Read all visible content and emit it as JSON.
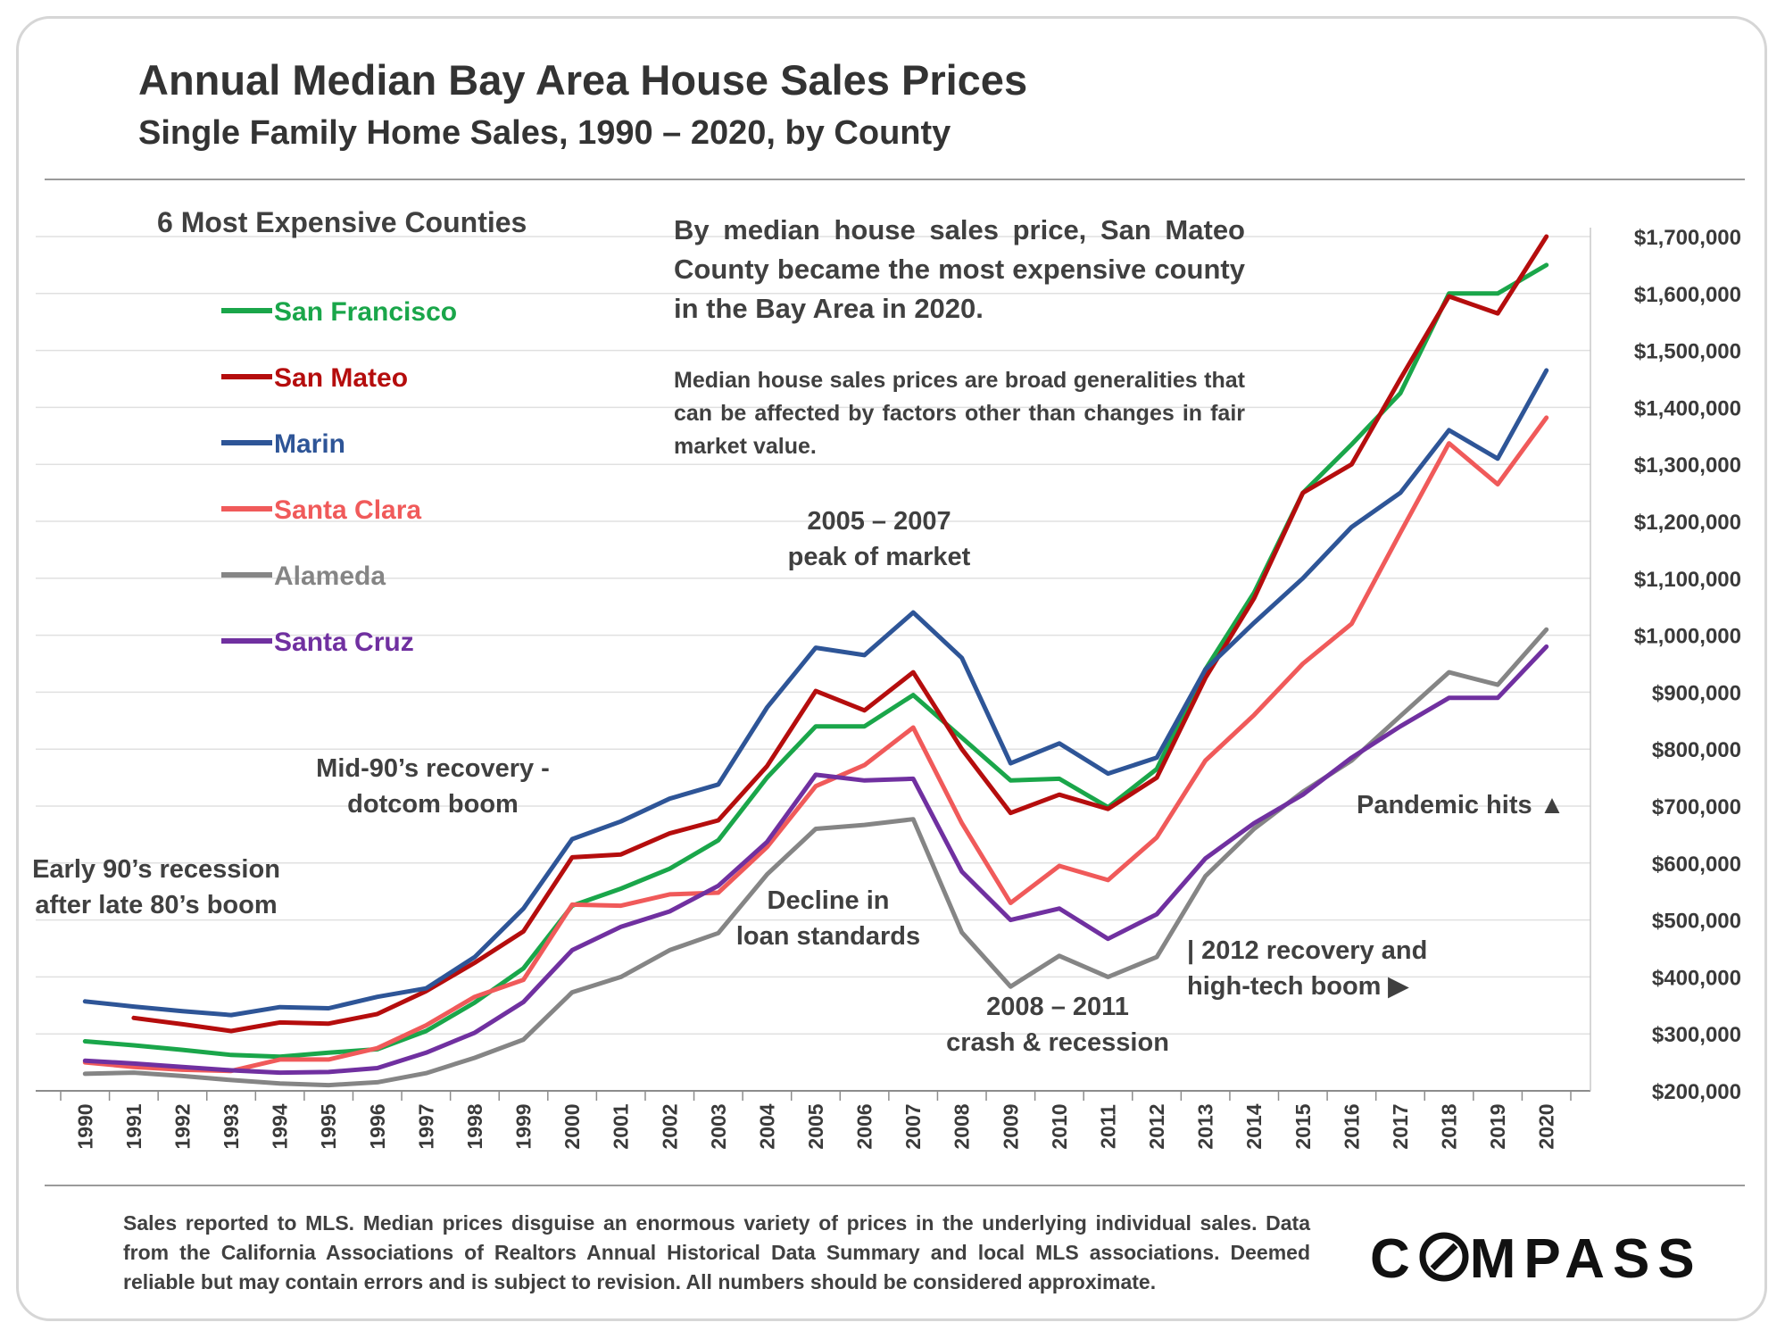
{
  "title": "Annual Median Bay Area House Sales Prices",
  "subtitle": "Single Family Home Sales, 1990 – 2020, by County",
  "legend_title": "6 Most Expensive Counties",
  "note_main": "By median house sales price, San Mateo County became the most expensive county in the Bay Area in 2020.",
  "note_secondary": "Median house sales prices are broad generalities that can be affected by factors other than changes in fair market value.",
  "annotations": [
    {
      "id": "peak",
      "lines": [
        "2005 – 2007",
        "peak of market"
      ]
    },
    {
      "id": "mid90s",
      "lines": [
        "Mid-90’s recovery -",
        "dotcom boom"
      ]
    },
    {
      "id": "early90s",
      "lines": [
        "Early 90’s recession",
        "after late 80’s boom"
      ]
    },
    {
      "id": "decline",
      "lines": [
        "Decline in",
        "loan standards"
      ]
    },
    {
      "id": "pandemic",
      "lines": [
        "Pandemic hits ▲"
      ]
    },
    {
      "id": "recovery2012",
      "lines": [
        "| 2012 recovery and",
        "high-tech boom ▶"
      ]
    },
    {
      "id": "crash",
      "lines": [
        "2008 – 2011",
        "crash & recession"
      ]
    }
  ],
  "footer": "Sales reported to MLS. Median prices disguise an enormous variety of prices in the underlying individual sales. Data from the California Associations of Realtors Annual Historical Data Summary and local MLS associations. Deemed reliable but may contain errors and is subject to revision. All numbers should be considered approximate.",
  "logo_before": "C",
  "logo_after": "MPASS",
  "chart_data": {
    "type": "line",
    "x": [
      1990,
      1991,
      1992,
      1993,
      1994,
      1995,
      1996,
      1997,
      1998,
      1999,
      2000,
      2001,
      2002,
      2003,
      2004,
      2005,
      2006,
      2007,
      2008,
      2009,
      2010,
      2011,
      2012,
      2013,
      2014,
      2015,
      2016,
      2017,
      2018,
      2019,
      2020
    ],
    "x_tick_labels": [
      "1990",
      "1991",
      "1992",
      "1993",
      "1994",
      "1995",
      "1996",
      "1997",
      "1998",
      "1999",
      "2000",
      "2001",
      "2002",
      "2003",
      "2004",
      "2005",
      "2006",
      "2007",
      "2008",
      "2009",
      "2010",
      "2011",
      "2012",
      "2013",
      "2014",
      "2015",
      "2016",
      "2017",
      "2018",
      "2019",
      "2020"
    ],
    "ylim": [
      200000,
      1700000
    ],
    "y_ticks": [
      200000,
      300000,
      400000,
      500000,
      600000,
      700000,
      800000,
      900000,
      1000000,
      1100000,
      1200000,
      1300000,
      1400000,
      1500000,
      1600000,
      1700000
    ],
    "y_tick_labels": [
      "$200,000",
      "$300,000",
      "$400,000",
      "$500,000",
      "$600,000",
      "$700,000",
      "$800,000",
      "$900,000",
      "$1,000,000",
      "$1,100,000",
      "$1,200,000",
      "$1,300,000",
      "$1,400,000",
      "$1,500,000",
      "$1,600,000",
      "$1,700,000"
    ],
    "y_axis_position": "right",
    "grid": true,
    "legend_position": "top-left",
    "series": [
      {
        "name": "San Francisco",
        "color": "#1aa64a",
        "values": [
          287000,
          280000,
          272000,
          263000,
          260000,
          267000,
          273000,
          305000,
          355000,
          415000,
          525000,
          555000,
          590000,
          640000,
          750000,
          840000,
          840000,
          895000,
          820000,
          745000,
          748000,
          698000,
          765000,
          940000,
          1075000,
          1250000,
          1335000,
          1425000,
          1600000,
          1600000,
          1650000
        ]
      },
      {
        "name": "San Mateo",
        "color": "#b50d0d",
        "values": [
          null,
          328000,
          317000,
          305000,
          320000,
          318000,
          335000,
          375000,
          425000,
          480000,
          610000,
          615000,
          652000,
          675000,
          770000,
          902000,
          868000,
          935000,
          800000,
          688000,
          720000,
          695000,
          750000,
          925000,
          1065000,
          1250000,
          1300000,
          1450000,
          1595000,
          1565000,
          1700000
        ]
      },
      {
        "name": "Marin",
        "color": "#2e5597",
        "values": [
          357000,
          348000,
          340000,
          333000,
          347000,
          345000,
          365000,
          380000,
          435000,
          520000,
          642000,
          673000,
          713000,
          738000,
          873000,
          978000,
          965000,
          1040000,
          960000,
          775000,
          810000,
          757000,
          785000,
          940000,
          1022000,
          1100000,
          1190000,
          1250000,
          1360000,
          1310000,
          1465000
        ]
      },
      {
        "name": "Santa Clara",
        "color": "#f05a5a",
        "values": [
          250000,
          242000,
          237000,
          235000,
          255000,
          255000,
          275000,
          315000,
          365000,
          395000,
          527000,
          525000,
          545000,
          548000,
          628000,
          735000,
          772000,
          838000,
          670000,
          530000,
          595000,
          570000,
          645000,
          780000,
          860000,
          950000,
          1020000,
          1180000,
          1337000,
          1265000,
          1382000
        ]
      },
      {
        "name": "Alameda",
        "color": "#858585",
        "values": [
          230000,
          232000,
          226000,
          219000,
          213000,
          210000,
          215000,
          231000,
          258000,
          290000,
          373000,
          400000,
          447000,
          477000,
          580000,
          660000,
          667000,
          677000,
          478000,
          383000,
          437000,
          400000,
          435000,
          577000,
          660000,
          725000,
          780000,
          858000,
          935000,
          913000,
          1010000
        ]
      },
      {
        "name": "Santa Cruz",
        "color": "#7030a0",
        "values": [
          253000,
          248000,
          242000,
          236000,
          232000,
          233000,
          240000,
          267000,
          302000,
          356000,
          447000,
          488000,
          515000,
          560000,
          637000,
          755000,
          745000,
          748000,
          585000,
          500000,
          520000,
          467000,
          510000,
          608000,
          670000,
          720000,
          785000,
          840000,
          890000,
          890000,
          980000
        ]
      }
    ]
  }
}
